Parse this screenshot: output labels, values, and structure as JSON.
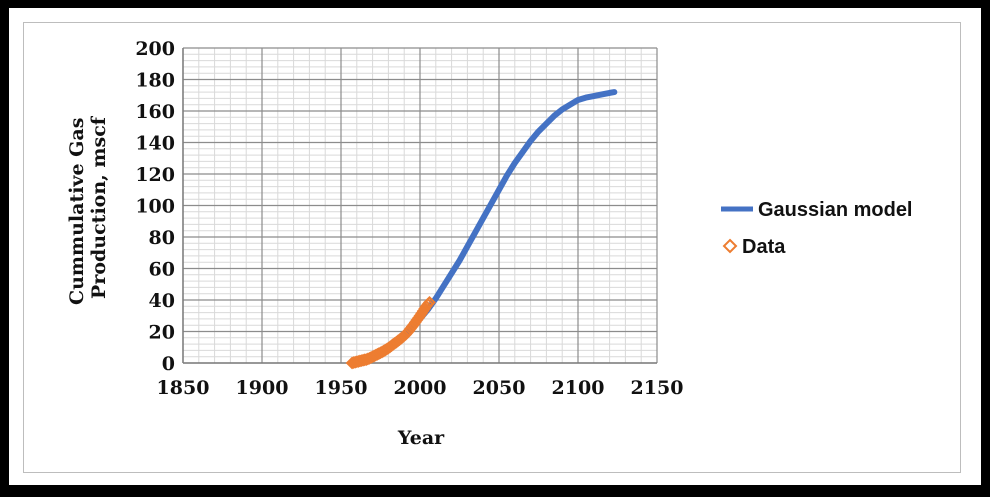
{
  "chart_data": {
    "type": "line",
    "xlabel": "Year",
    "ylabel": [
      "Cummulative Gas",
      "Production, mscf"
    ],
    "xlim": [
      1850,
      2150
    ],
    "ylim": [
      0,
      200
    ],
    "xticks": [
      1850,
      1900,
      1950,
      2000,
      2050,
      2100,
      2150
    ],
    "yticks": [
      0,
      20,
      40,
      60,
      80,
      100,
      120,
      140,
      160,
      180,
      200
    ],
    "grid": true,
    "legend_position": "right",
    "series": [
      {
        "name": "Gaussian model",
        "style": "line",
        "color": "#4472c4",
        "x": [
          1958,
          1965,
          1970,
          1975,
          1980,
          1985,
          1990,
          1995,
          2000,
          2005,
          2010,
          2015,
          2020,
          2025,
          2030,
          2035,
          2040,
          2045,
          2050,
          2055,
          2060,
          2065,
          2070,
          2075,
          2080,
          2085,
          2090,
          2095,
          2100,
          2105,
          2110,
          2115,
          2120,
          2123
        ],
        "y": [
          1,
          3,
          5,
          7,
          10,
          13,
          17,
          22,
          28,
          34,
          41,
          49,
          57,
          65,
          74,
          83,
          92,
          101,
          110,
          119,
          127,
          134,
          141,
          147,
          152,
          157,
          161,
          164,
          167,
          168.5,
          169.5,
          170.5,
          171.5,
          172
        ]
      },
      {
        "name": "Data",
        "style": "marker",
        "color": "#ed7d31",
        "x": [
          1957,
          1958,
          1959,
          1960,
          1961,
          1962,
          1963,
          1964,
          1965,
          1966,
          1967,
          1968,
          1969,
          1970,
          1971,
          1972,
          1973,
          1974,
          1975,
          1976,
          1977,
          1978,
          1979,
          1980,
          1981,
          1982,
          1983,
          1984,
          1985,
          1986,
          1987,
          1988,
          1989,
          1990,
          1991,
          1992,
          1993,
          1994,
          1995,
          1996,
          1997,
          1998,
          1999,
          2000,
          2001,
          2002,
          2003,
          2004,
          2005,
          2006
        ],
        "y": [
          0,
          0.3,
          0.5,
          0.8,
          1,
          1.3,
          1.5,
          1.8,
          2,
          2.2,
          2.6,
          3,
          3.5,
          4,
          4.5,
          5,
          5.5,
          6,
          6.5,
          7,
          7.6,
          8.2,
          8.8,
          9.5,
          10.2,
          11,
          11.8,
          12.5,
          13.2,
          14,
          14.8,
          15.6,
          16.4,
          17.3,
          18.2,
          19.3,
          20.5,
          21.8,
          23.1,
          24.4,
          25.8,
          27.2,
          28.6,
          30,
          31.5,
          33,
          34.5,
          36,
          37.3,
          38.5
        ]
      }
    ]
  }
}
